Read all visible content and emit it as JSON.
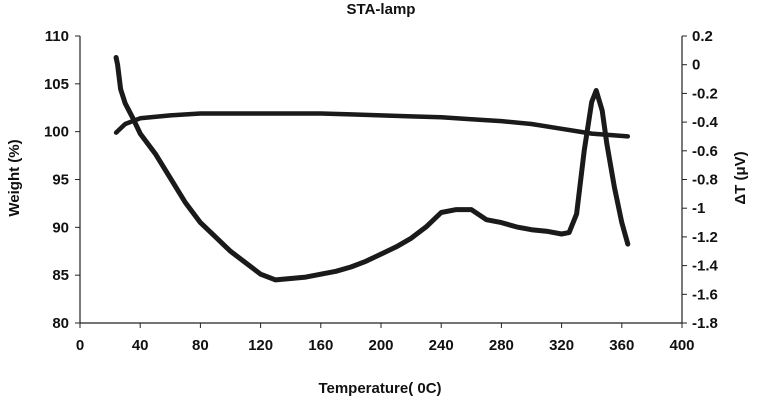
{
  "chart_data": {
    "type": "line",
    "title": "STA-lamp",
    "xlabel": "Temperature( 0C)",
    "ylabel_left": "Weight  (%)",
    "ylabel_right": "ΔT (μV)",
    "xlim": [
      0,
      400
    ],
    "ylim_left": [
      80,
      110
    ],
    "ylim_right": [
      -1.8,
      0.2
    ],
    "x_ticks": [
      "0",
      "40",
      "80",
      "120",
      "160",
      "200",
      "240",
      "280",
      "320",
      "360",
      "400"
    ],
    "y_left_ticks": [
      "80",
      "85",
      "90",
      "95",
      "100",
      "105",
      "110"
    ],
    "y_right_ticks": [
      "-1.8",
      "-1.6",
      "-1.4",
      "-1.2",
      "-1",
      "-0.8",
      "-0.6",
      "-0.4",
      "-0.2",
      "0",
      "0.2"
    ],
    "grid": false,
    "line_color": "#1a1a1a",
    "series": [
      {
        "axis": "left",
        "x": [
          24,
          30,
          40,
          60,
          80,
          100,
          120,
          140,
          160,
          180,
          200,
          220,
          240,
          260,
          280,
          300,
          320,
          340,
          364
        ],
        "values": [
          99.9,
          100.8,
          101.4,
          101.7,
          101.9,
          101.9,
          101.9,
          101.9,
          101.9,
          101.8,
          101.7,
          101.6,
          101.5,
          101.3,
          101.1,
          100.8,
          100.3,
          99.8,
          99.5
        ]
      },
      {
        "axis": "right",
        "x": [
          24,
          25,
          27,
          30,
          35,
          40,
          50,
          60,
          70,
          80,
          90,
          100,
          110,
          120,
          130,
          140,
          150,
          160,
          170,
          180,
          190,
          200,
          210,
          220,
          230,
          240,
          250,
          260,
          270,
          280,
          290,
          300,
          310,
          320,
          325,
          330,
          335,
          340,
          343,
          347,
          350,
          355,
          360,
          364
        ],
        "values": [
          0.05,
          0.0,
          -0.17,
          -0.27,
          -0.37,
          -0.48,
          -0.62,
          -0.79,
          -0.96,
          -1.1,
          -1.2,
          -1.3,
          -1.38,
          -1.46,
          -1.5,
          -1.49,
          -1.48,
          -1.46,
          -1.44,
          -1.41,
          -1.37,
          -1.32,
          -1.27,
          -1.21,
          -1.13,
          -1.03,
          -1.01,
          -1.01,
          -1.08,
          -1.1,
          -1.13,
          -1.15,
          -1.16,
          -1.18,
          -1.17,
          -1.04,
          -0.6,
          -0.26,
          -0.18,
          -0.32,
          -0.55,
          -0.85,
          -1.1,
          -1.25
        ]
      }
    ]
  }
}
